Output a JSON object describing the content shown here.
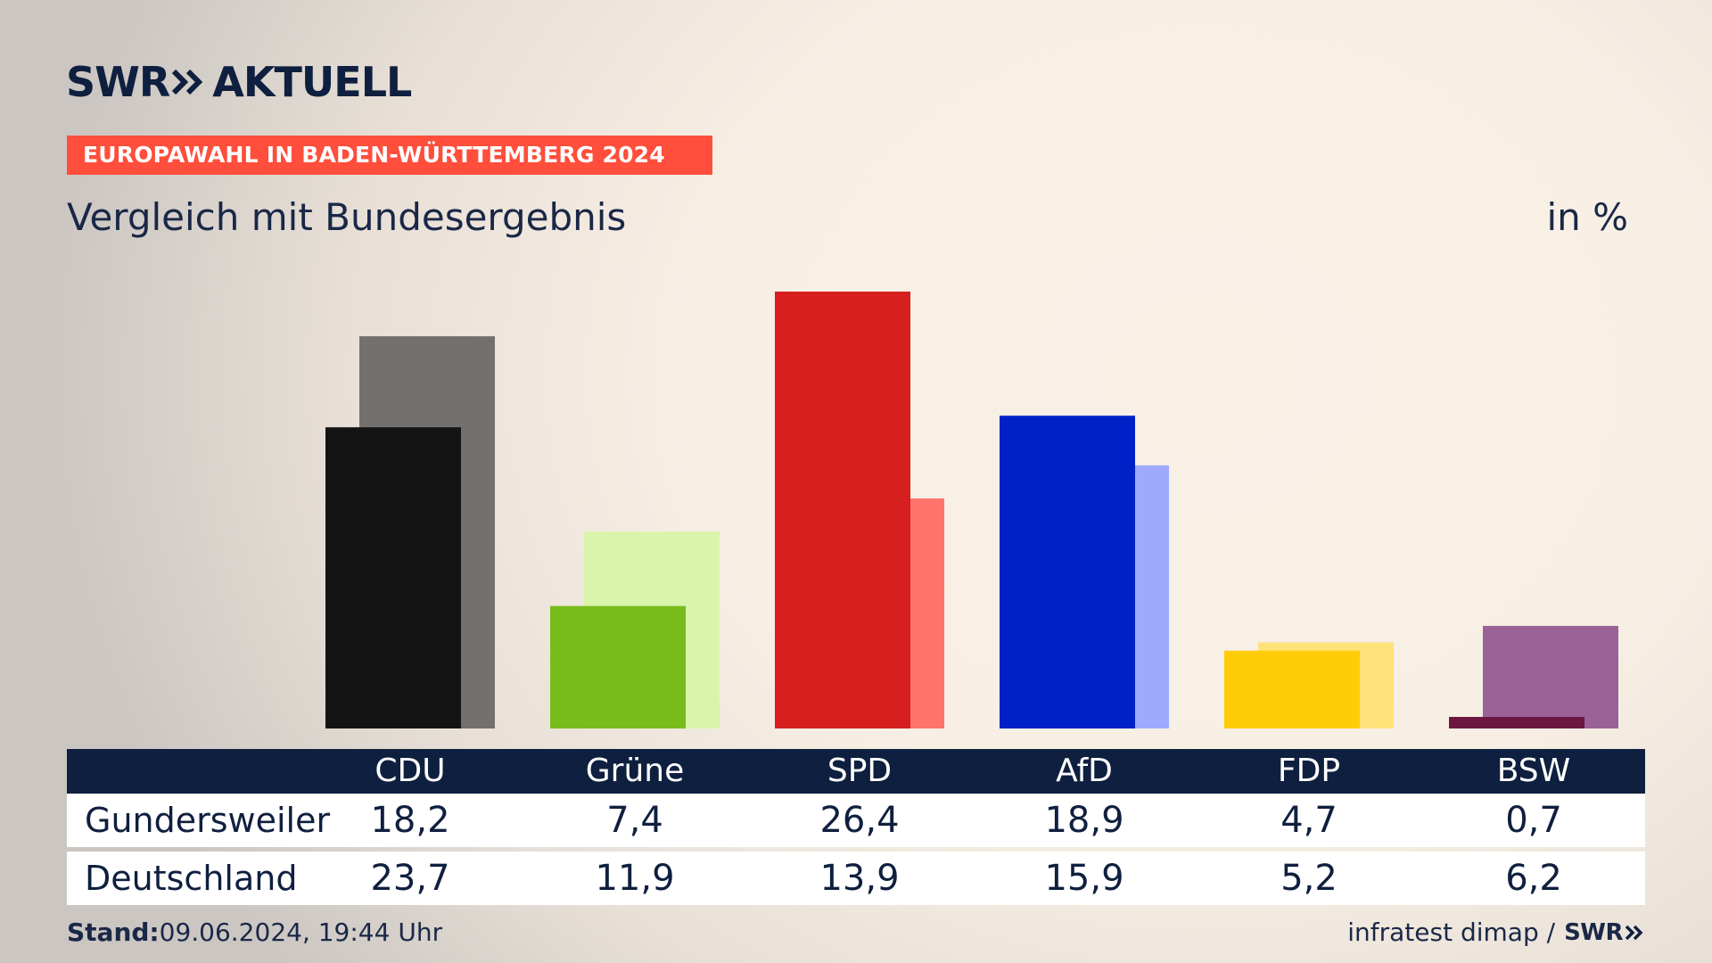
{
  "brand": {
    "logo_left": "SWR",
    "logo_right": "AKTUELL",
    "logo_icon": "double-chevron-right-icon",
    "color": "#0f1f3f"
  },
  "event": {
    "label": "EUROPAWAHL IN BADEN-WÜRTTEMBERG 2024",
    "color": "#ff4e3b"
  },
  "footer": {
    "stand_label": "Stand:",
    "stand_value": "09.06.2024, 19:44 Uhr",
    "source": "infratest dimap /",
    "source_logo": "SWR"
  },
  "chart_data": {
    "type": "bar",
    "title": "Vergleich mit Bundesergebnis",
    "unit": "in %",
    "categories": [
      "CDU",
      "Grüne",
      "SPD",
      "AfD",
      "FDP",
      "BSW"
    ],
    "series": [
      {
        "name": "Gundersweiler",
        "values": [
          18.2,
          7.4,
          26.4,
          18.9,
          4.7,
          0.7
        ],
        "labels": [
          "18,2",
          "7,4",
          "26,4",
          "18,9",
          "4,7",
          "0,7"
        ],
        "colors": [
          "#141414",
          "#78bc1b",
          "#d71f1f",
          "#0021c8",
          "#ffcc0a",
          "#6b1740"
        ]
      },
      {
        "name": "Deutschland",
        "values": [
          23.7,
          11.9,
          13.9,
          15.9,
          5.2,
          6.2
        ],
        "labels": [
          "23,7",
          "11,9",
          "13,9",
          "15,9",
          "5,2",
          "6,2"
        ],
        "colors": [
          "#73706e",
          "#d9f5ac",
          "#ff736b",
          "#9daafe",
          "#ffe27a",
          "#9a6296"
        ]
      }
    ],
    "ylim": [
      0,
      26.4
    ],
    "grid": false
  }
}
